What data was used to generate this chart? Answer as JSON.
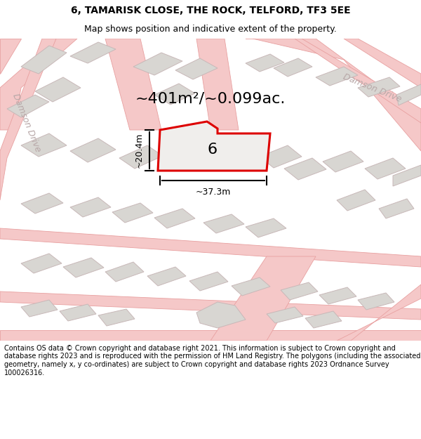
{
  "title_line1": "6, TAMARISK CLOSE, THE ROCK, TELFORD, TF3 5EE",
  "title_line2": "Map shows position and indicative extent of the property.",
  "area_text": "~401m²/~0.099ac.",
  "plot_number": "6",
  "width_label": "~37.3m",
  "height_label": "~20.4m",
  "footer_text": "Contains OS data © Crown copyright and database right 2021. This information is subject to Crown copyright and database rights 2023 and is reproduced with the permission of HM Land Registry. The polygons (including the associated geometry, namely x, y co-ordinates) are subject to Crown copyright and database rights 2023 Ordnance Survey 100026316.",
  "bg_color": "#f0eeec",
  "map_bg": "#f0eeec",
  "road_color": "#f5c8c8",
  "road_border_color": "#e8a0a0",
  "plot_color": "#dd0000",
  "plot_fill": "#f0eeec",
  "building_fill": "#d8d6d2",
  "building_border": "#c8b8b8",
  "road_label_color": "#b8a8a8",
  "footer_bg": "#ffffff",
  "title_fontsize": 10,
  "subtitle_fontsize": 9,
  "area_fontsize": 16,
  "plot_label_fontsize": 16,
  "dim_fontsize": 9,
  "road_label_fontsize": 9,
  "footer_fontsize": 7
}
